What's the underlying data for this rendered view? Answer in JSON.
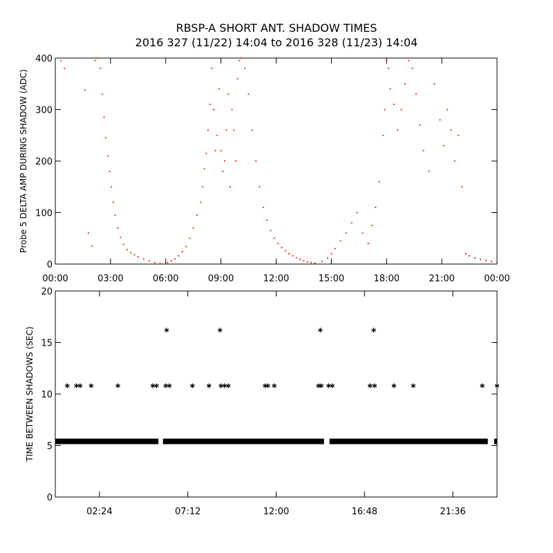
{
  "title": "RBSP-A SHORT ANT. SHADOW TIMES",
  "subtitle": "2016 327 (11/22) 14:04 to 2016 328 (11/23) 14:04",
  "colors": {
    "amp_points": "#e8381e",
    "axes": "#000000",
    "shadow_stars": "#000000"
  },
  "chart_data": [
    {
      "type": "scatter",
      "name": "probe5-delta-amp",
      "ylabel": "Probe 5 DELTA AMP DURING SHADOW (ADC)",
      "xlabel": "",
      "x_units": "hours since 00:00",
      "xlim": [
        0,
        24
      ],
      "ylim": [
        0,
        400
      ],
      "grid": false,
      "xticks": [
        0,
        3,
        6,
        9,
        12,
        15,
        18,
        21,
        24
      ],
      "xtick_labels": [
        "00:00",
        "03:00",
        "06:00",
        "09:00",
        "12:00",
        "15:00",
        "18:00",
        "21:00",
        "00:00"
      ],
      "yticks": [
        0,
        100,
        200,
        300,
        400
      ],
      "ytick_labels": [
        "0",
        "100",
        "200",
        "300",
        "400"
      ],
      "series": [
        {
          "name": "Probe 5 delta amp",
          "color": "#e8381e",
          "x": [
            0.3,
            0.5,
            1.6,
            1.8,
            2.0,
            2.15,
            2.3,
            2.45,
            2.55,
            2.65,
            2.75,
            2.85,
            2.95,
            3.05,
            3.15,
            3.25,
            3.4,
            3.55,
            3.7,
            3.9,
            4.1,
            4.3,
            4.5,
            4.8,
            5.1,
            5.4,
            5.7,
            6.1,
            6.3,
            6.5,
            6.7,
            6.9,
            7.1,
            7.3,
            7.5,
            7.7,
            7.9,
            8.0,
            8.1,
            8.2,
            8.3,
            8.4,
            8.5,
            8.6,
            8.7,
            8.8,
            8.9,
            9.0,
            9.1,
            9.2,
            9.3,
            9.4,
            9.5,
            9.6,
            9.7,
            9.8,
            9.9,
            10.0,
            10.1,
            10.3,
            10.5,
            10.7,
            10.9,
            11.1,
            11.3,
            11.5,
            11.7,
            11.9,
            12.1,
            12.3,
            12.5,
            12.7,
            12.9,
            13.1,
            13.3,
            13.5,
            13.7,
            13.9,
            14.1,
            14.5,
            14.8,
            15.0,
            15.2,
            15.5,
            15.8,
            16.1,
            16.4,
            16.7,
            17.0,
            17.2,
            17.4,
            17.6,
            17.8,
            17.9,
            18.0,
            18.1,
            18.2,
            18.4,
            18.6,
            18.8,
            19.0,
            19.2,
            19.4,
            19.6,
            19.8,
            20.0,
            20.3,
            20.6,
            20.9,
            21.1,
            21.3,
            21.5,
            21.7,
            21.9,
            22.1,
            22.3,
            22.5,
            22.8,
            23.1,
            23.4,
            23.7
          ],
          "y": [
            395,
            380,
            338,
            60,
            35,
            395,
            400,
            380,
            330,
            285,
            245,
            210,
            180,
            150,
            120,
            95,
            70,
            52,
            38,
            28,
            22,
            18,
            14,
            10,
            6,
            3,
            1,
            3,
            6,
            10,
            16,
            24,
            34,
            50,
            70,
            95,
            120,
            150,
            185,
            215,
            260,
            310,
            380,
            300,
            220,
            250,
            340,
            220,
            180,
            200,
            260,
            330,
            150,
            300,
            260,
            200,
            360,
            395,
            400,
            380,
            330,
            260,
            200,
            150,
            110,
            85,
            65,
            50,
            40,
            32,
            26,
            20,
            16,
            12,
            9,
            6,
            4,
            3,
            2,
            5,
            12,
            20,
            30,
            45,
            60,
            80,
            100,
            60,
            40,
            75,
            110,
            160,
            250,
            300,
            395,
            380,
            340,
            310,
            260,
            300,
            350,
            395,
            380,
            330,
            270,
            220,
            180,
            350,
            280,
            230,
            300,
            260,
            200,
            250,
            150,
            20,
            16,
            12,
            9,
            7,
            5
          ]
        }
      ]
    },
    {
      "type": "scatter",
      "name": "time-between-shadows",
      "ylabel": "TIME BETWEEN SHADOWS (SEC)",
      "xlabel": "",
      "x_units": "hours since 00:00",
      "xlim": [
        0,
        24
      ],
      "ylim": [
        0,
        20
      ],
      "grid": false,
      "xticks": [
        2.4,
        7.2,
        12.0,
        16.8,
        21.6
      ],
      "xtick_labels": [
        "02:24",
        "07:12",
        "12:00",
        "16:48",
        "21:36"
      ],
      "yticks": [
        0,
        5,
        10,
        15,
        20
      ],
      "ytick_labels": [
        "0",
        "5",
        "10",
        "15",
        "20"
      ],
      "baseline": {
        "value": 5.4,
        "x_from": 0.0,
        "x_to": 24.0,
        "gaps": [
          [
            5.6,
            5.85
          ],
          [
            14.6,
            14.9
          ],
          [
            23.5,
            23.85
          ]
        ]
      },
      "series": [
        {
          "name": "shadow intervals",
          "marker": "asterisk",
          "color": "#000000",
          "x": [
            0.65,
            1.15,
            1.35,
            1.95,
            3.4,
            5.3,
            5.5,
            6.0,
            6.2,
            7.45,
            8.35,
            9.0,
            9.2,
            9.4,
            11.4,
            11.55,
            11.9,
            14.3,
            14.45,
            14.85,
            15.05,
            17.1,
            17.35,
            18.4,
            19.45,
            23.2,
            24.0,
            6.05,
            8.95,
            14.4,
            17.3
          ],
          "y": [
            10.8,
            10.8,
            10.8,
            10.8,
            10.8,
            10.8,
            10.8,
            10.8,
            10.8,
            10.8,
            10.8,
            10.8,
            10.8,
            10.8,
            10.8,
            10.8,
            10.8,
            10.8,
            10.8,
            10.8,
            10.8,
            10.8,
            10.8,
            10.8,
            10.8,
            10.8,
            10.8,
            16.2,
            16.2,
            16.2,
            16.2
          ]
        }
      ]
    }
  ]
}
